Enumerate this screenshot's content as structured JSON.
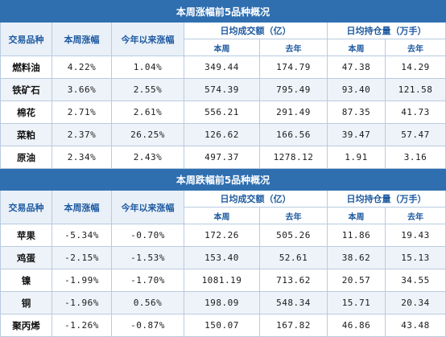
{
  "section_up": {
    "title": "本周涨幅前5品种概况",
    "headers": {
      "variety": "交易品种",
      "weekly_change": "本周涨幅",
      "ytd_change": "今年以来涨幅",
      "turnover": "日均成交额（亿）",
      "open_interest": "日均持仓量（万手）",
      "this_week": "本周",
      "last_year": "去年",
      "this_week_2": "本周",
      "last_year_2": "去年"
    },
    "rows": [
      {
        "name": "燃料油",
        "weekly": "4.22%",
        "ytd": "1.04%",
        "turn_week": "349.44",
        "turn_year": "174.79",
        "oi_week": "47.38",
        "oi_year": "14.29"
      },
      {
        "name": "铁矿石",
        "weekly": "3.66%",
        "ytd": "2.55%",
        "turn_week": "574.39",
        "turn_year": "795.49",
        "oi_week": "93.40",
        "oi_year": "121.58"
      },
      {
        "name": "棉花",
        "weekly": "2.71%",
        "ytd": "2.61%",
        "turn_week": "556.21",
        "turn_year": "291.49",
        "oi_week": "87.35",
        "oi_year": "41.73"
      },
      {
        "name": "菜粕",
        "weekly": "2.37%",
        "ytd": "26.25%",
        "turn_week": "126.62",
        "turn_year": "166.56",
        "oi_week": "39.47",
        "oi_year": "57.47"
      },
      {
        "name": "原油",
        "weekly": "2.34%",
        "ytd": "2.43%",
        "turn_week": "497.37",
        "turn_year": "1278.12",
        "oi_week": "1.91",
        "oi_year": "3.16"
      }
    ]
  },
  "section_down": {
    "title": "本周跌幅前5品种概况",
    "headers": {
      "variety": "交易品种",
      "weekly_change": "本周涨幅",
      "ytd_change": "今年以来涨幅",
      "turnover": "日均成交额（亿）",
      "open_interest": "日均持仓量（万手）",
      "this_week": "本周",
      "last_year": "去年",
      "this_week_2": "本周",
      "last_year_2": "去年"
    },
    "rows": [
      {
        "name": "苹果",
        "weekly": "-5.34%",
        "ytd": "-0.70%",
        "turn_week": "172.26",
        "turn_year": "505.26",
        "oi_week": "11.86",
        "oi_year": "19.43"
      },
      {
        "name": "鸡蛋",
        "weekly": "-2.15%",
        "ytd": "-1.53%",
        "turn_week": "153.40",
        "turn_year": "52.61",
        "oi_week": "38.62",
        "oi_year": "15.13"
      },
      {
        "name": "镍",
        "weekly": "-1.99%",
        "ytd": "-1.70%",
        "turn_week": "1081.19",
        "turn_year": "713.62",
        "oi_week": "20.57",
        "oi_year": "34.55"
      },
      {
        "name": "铜",
        "weekly": "-1.96%",
        "ytd": "0.56%",
        "turn_week": "198.09",
        "turn_year": "548.34",
        "oi_week": "15.71",
        "oi_year": "20.34"
      },
      {
        "name": "聚丙烯",
        "weekly": "-1.26%",
        "ytd": "-0.87%",
        "turn_week": "150.07",
        "turn_year": "167.82",
        "oi_week": "46.86",
        "oi_year": "43.48"
      }
    ]
  }
}
